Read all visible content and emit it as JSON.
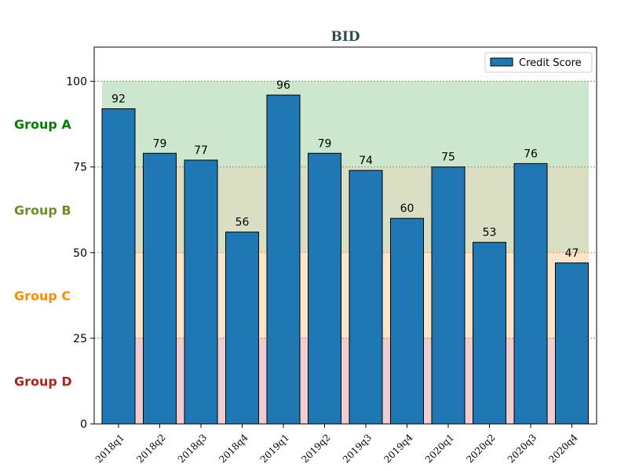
{
  "chart_data": {
    "type": "bar",
    "title": "BID",
    "xlabel": "",
    "ylabel": "",
    "ylim": [
      0,
      110
    ],
    "yticks": [
      0,
      25,
      50,
      75,
      100
    ],
    "grid": false,
    "legend_position": "top-right",
    "categories": [
      "2018q1",
      "2018q2",
      "2018q3",
      "2018q4",
      "2019q1",
      "2019q2",
      "2019q3",
      "2019q4",
      "2020q1",
      "2020q2",
      "2020q3",
      "2020q4"
    ],
    "series": [
      {
        "name": "Credit Score",
        "color": "#1f77b4",
        "values": [
          92,
          79,
          77,
          56,
          96,
          79,
          74,
          60,
          75,
          53,
          76,
          47
        ]
      }
    ],
    "bands": [
      {
        "label": "Group A",
        "from": 75,
        "to": 100,
        "fill": "#cde6ce",
        "line_color": "#2e8b2e",
        "text_color": "#008000"
      },
      {
        "label": "Group B",
        "from": 50,
        "to": 75,
        "fill": "#dadfc4",
        "line_color": "#8a7a1f",
        "text_color": "#6b8e23"
      },
      {
        "label": "Group C",
        "from": 25,
        "to": 50,
        "fill": "#fde5c9",
        "line_color": "#d98c2a",
        "text_color": "#ff8c00"
      },
      {
        "label": "Group D",
        "from": 0,
        "to": 25,
        "fill": "#f0cdd0",
        "line_color": "#c23b3b",
        "text_color": "#b22222"
      }
    ]
  }
}
